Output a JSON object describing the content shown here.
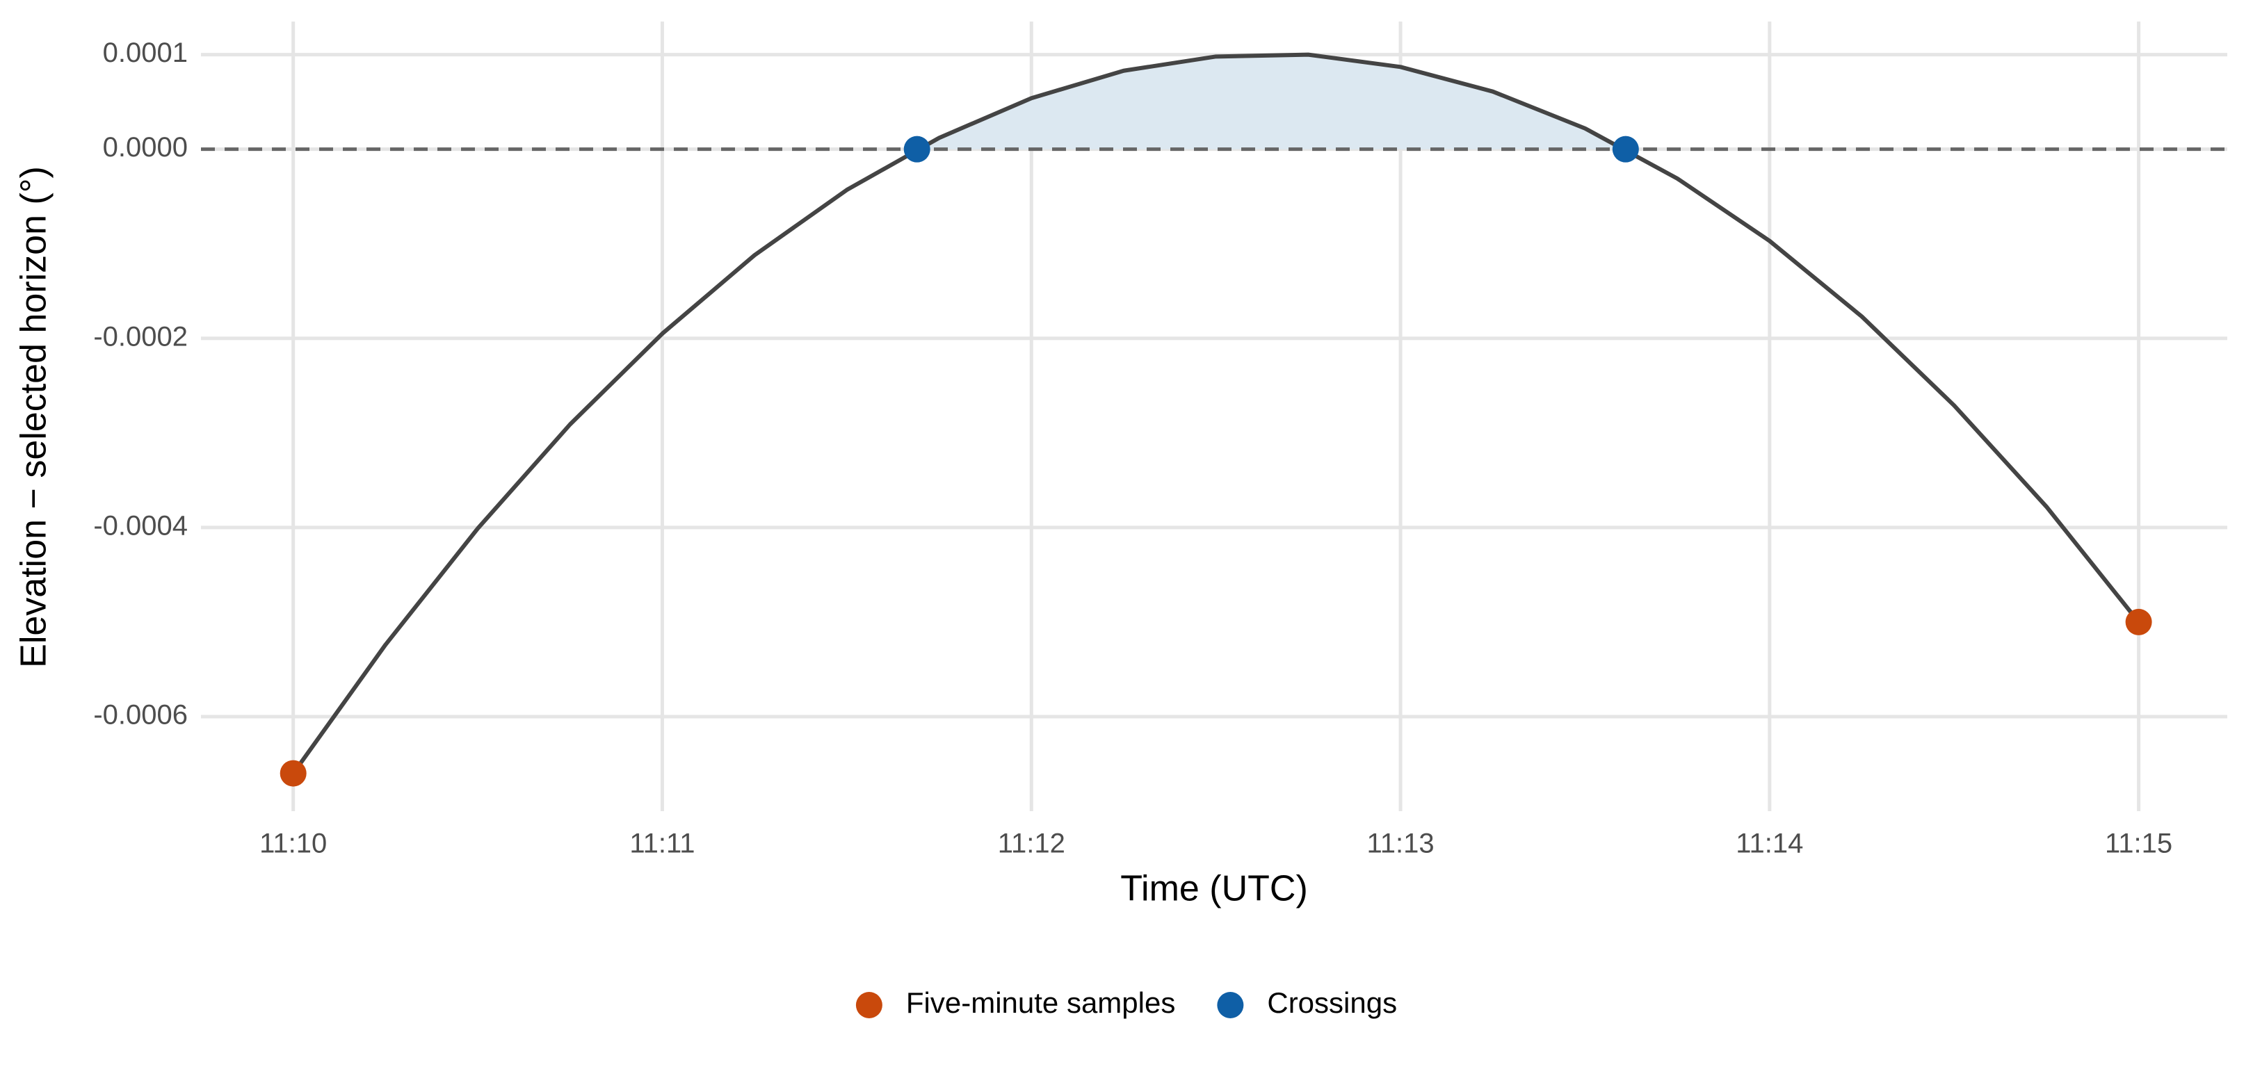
{
  "chart_data": {
    "type": "line",
    "x_label": "Time (UTC)",
    "y_label": "Elevation − selected horizon (°)",
    "xlim": [
      9.75,
      15.24
    ],
    "xticks": [
      {
        "value": 10,
        "label": "11:10"
      },
      {
        "value": 11,
        "label": "11:11"
      },
      {
        "value": 12,
        "label": "11:12"
      },
      {
        "value": 13,
        "label": "11:13"
      },
      {
        "value": 14,
        "label": "11:14"
      },
      {
        "value": 15,
        "label": "11:15"
      }
    ],
    "ylim": [
      -0.0007,
      0.000135
    ],
    "yticks": [
      -0.0006,
      -0.0004,
      -0.0002,
      {
        "value": 0,
        "label": "0.0000"
      },
      0.0001
    ],
    "grid": true,
    "hline": 0,
    "curve": {
      "color": "#444444",
      "fill_color": "#dce8f1",
      "x": [
        10,
        10.25,
        10.5,
        10.75,
        11,
        11.25,
        11.5,
        11.75,
        12,
        12.25,
        12.5,
        12.75,
        13,
        13.25,
        13.5,
        13.75,
        14,
        14.25,
        14.5,
        14.75,
        15
      ],
      "y": [
        -0.00066,
        -0.000524,
        -0.000401,
        -0.000291,
        -0.000195,
        -0.000112,
        -4.3e-05,
        1.2e-05,
        5.4e-05,
        8.3e-05,
        9.8e-05,
        0.0001,
        8.7e-05,
        6.1e-05,
        2.2e-05,
        -3.1e-05,
        -9.7e-05,
        -0.000177,
        -0.000271,
        -0.000378,
        -0.0005
      ]
    },
    "series": [
      {
        "name": "Five-minute samples",
        "color": "#c9490c",
        "x": [
          10,
          15
        ],
        "values": [
          -0.00066,
          -0.0005
        ]
      },
      {
        "name": "Crossings",
        "color": "#0f5fa6",
        "x": [
          11.69,
          13.61
        ],
        "values": [
          0,
          0
        ]
      }
    ],
    "legend": "bottom"
  }
}
